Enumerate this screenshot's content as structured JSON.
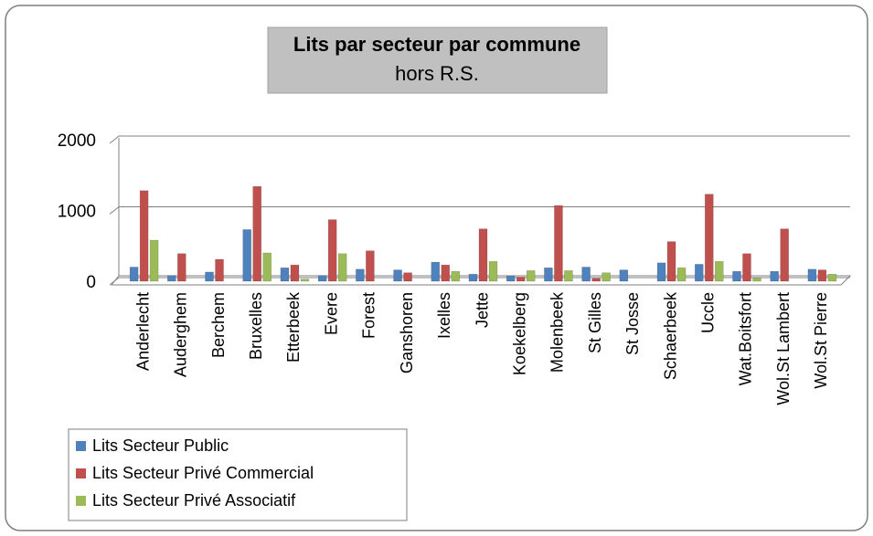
{
  "chart_data": {
    "type": "bar",
    "title": "Lits par secteur par commune",
    "subtitle": "hors R.S.",
    "categories": [
      "Anderlecht",
      "Auderghem",
      "Berchem",
      "Bruxelles",
      "Etterbeek",
      "Evere",
      "Forest",
      "Ganshoren",
      "Ixelles",
      "Jette",
      "Koekelberg",
      "Molenbeek",
      "St Gilles",
      "St Josse",
      "Schaerbeek",
      "Uccle",
      "Wat.Boitsfort",
      "Wol.St Lambert",
      "Wol.St Pierre"
    ],
    "series": [
      {
        "name": "Lits Secteur Public",
        "color": "#4f81bd",
        "values": [
          200,
          80,
          130,
          730,
          190,
          80,
          170,
          160,
          270,
          100,
          70,
          190,
          200,
          160,
          260,
          240,
          140,
          140,
          170
        ]
      },
      {
        "name": "Lits Secteur Privé Commercial",
        "color": "#c0504d",
        "values": [
          1280,
          390,
          310,
          1340,
          230,
          870,
          430,
          120,
          230,
          740,
          60,
          1070,
          40,
          0,
          560,
          1230,
          390,
          740,
          160
        ]
      },
      {
        "name": "Lits Secteur Privé Associatif",
        "color": "#9bbb59",
        "values": [
          580,
          0,
          0,
          400,
          30,
          390,
          0,
          0,
          140,
          280,
          150,
          150,
          120,
          0,
          190,
          280,
          50,
          0,
          100
        ]
      }
    ],
    "ylim": [
      0,
      2000
    ],
    "yticks": [
      0,
      1000,
      2000
    ],
    "grid": true
  }
}
